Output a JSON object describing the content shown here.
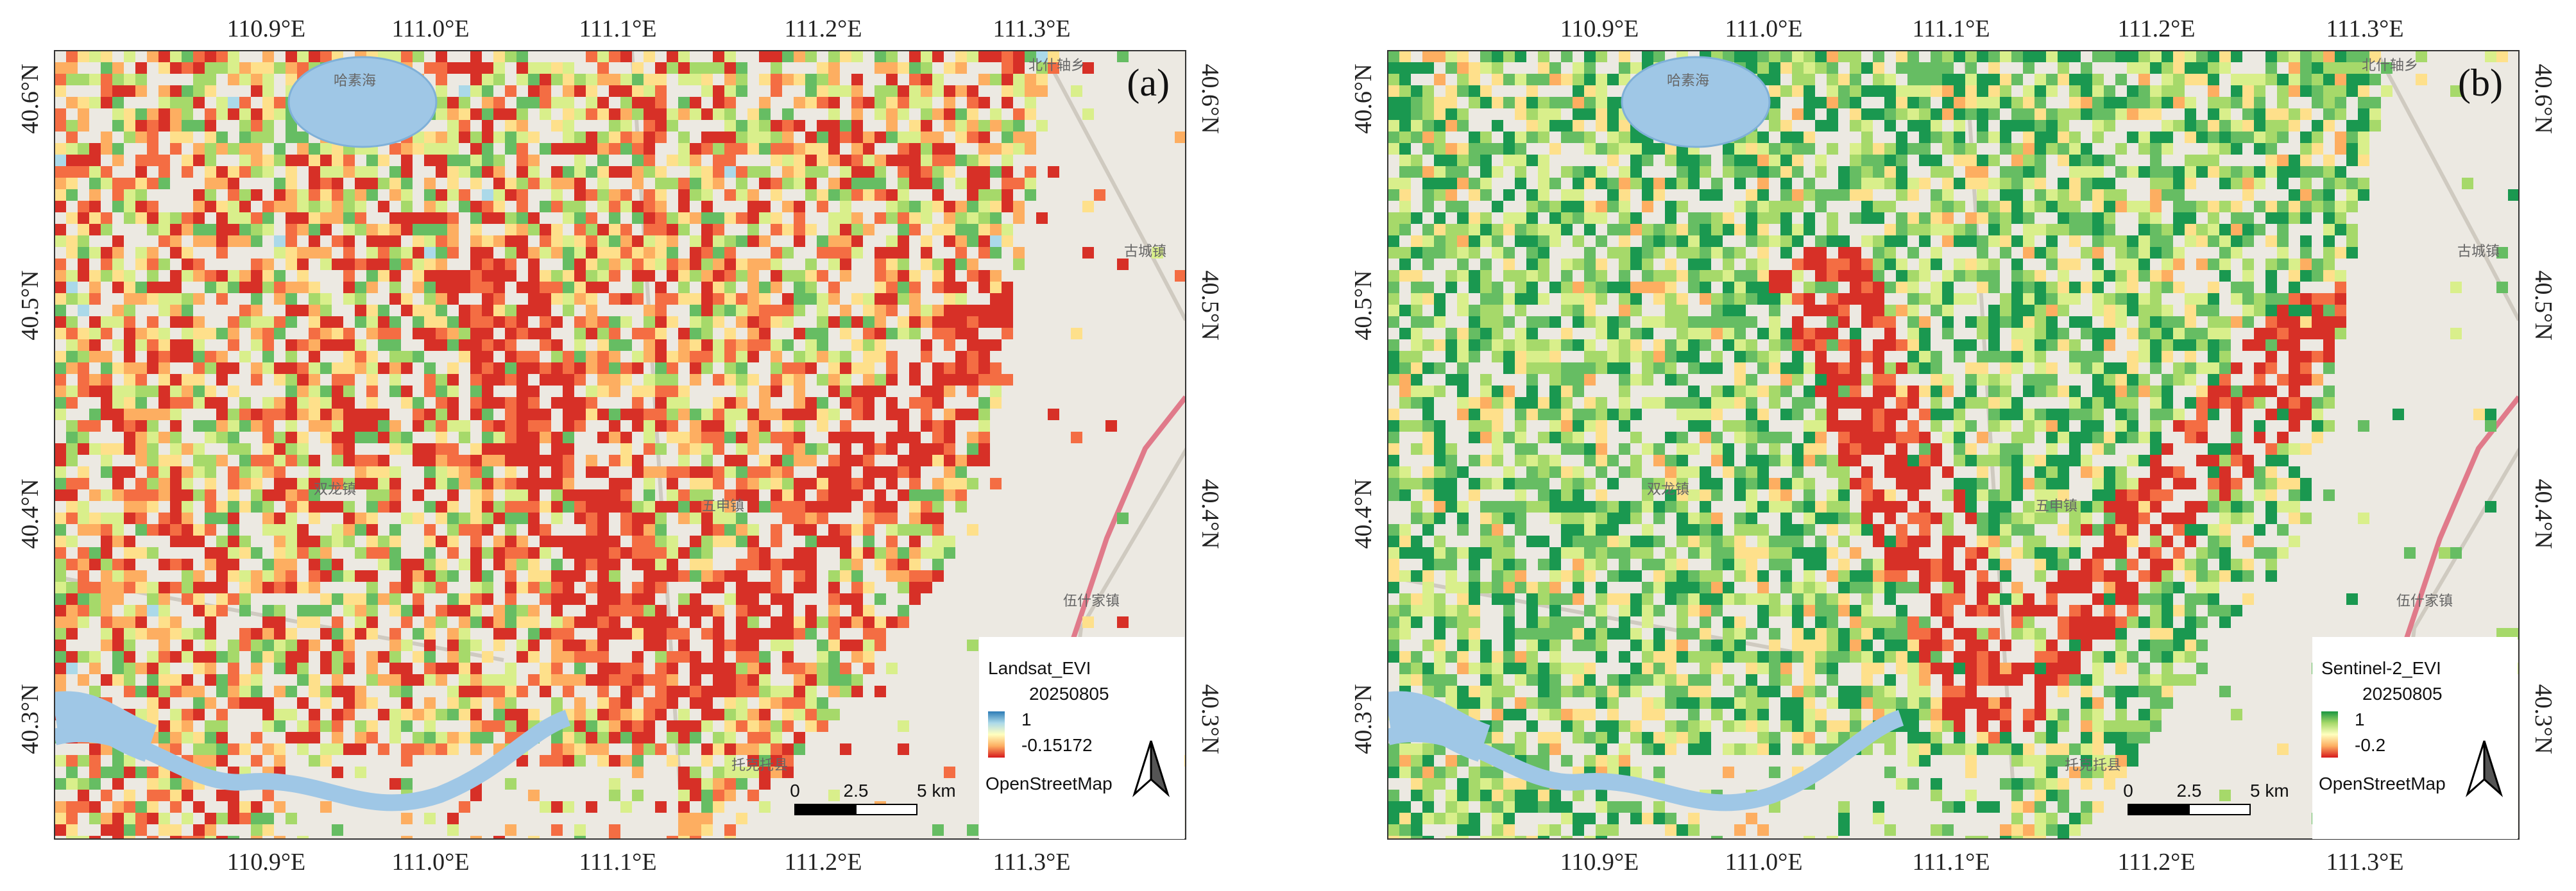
{
  "x_axis_labels": [
    "110.9°E",
    "111.0°E",
    "111.1°E",
    "111.2°E",
    "111.3°E"
  ],
  "y_axis_labels": [
    "40.6°N",
    "40.5°N",
    "40.4°N",
    "40.3°N"
  ],
  "panels": [
    {
      "label": "(a)",
      "legend": {
        "title": "Landsat_EVI",
        "date": "20250805",
        "max": 1,
        "min": -0.15172
      },
      "attribution": "OpenStreetMap"
    },
    {
      "label": "(b)",
      "legend": {
        "title": "Sentinel-2_EVI",
        "date": "20250805",
        "max": 1,
        "min": -0.2
      },
      "attribution": "OpenStreetMap"
    }
  ],
  "scale_bar": [
    "0",
    "2.5",
    "5 km"
  ],
  "place_names": [
    "哈素海",
    "古城镇",
    "五申镇",
    "双龙镇",
    "伍什家镇",
    "托克托县",
    "北什轴乡"
  ]
}
